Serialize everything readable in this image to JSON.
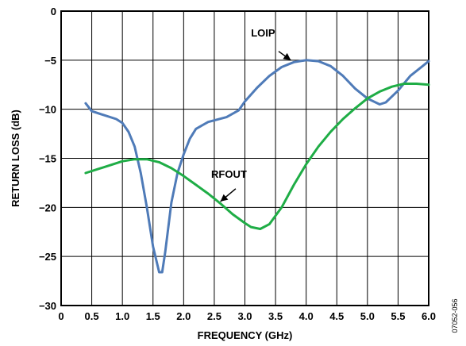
{
  "chart_data": {
    "type": "line",
    "xlabel": "FREQUENCY (GHz)",
    "ylabel": "RETURN LOSS (dB)",
    "xlim": [
      0,
      6.0
    ],
    "ylim": [
      -30,
      0
    ],
    "grid": true,
    "x_ticks": [
      "0",
      "0.5",
      "1.0",
      "1.5",
      "2.0",
      "2.5",
      "3.0",
      "3.5",
      "4.0",
      "4.5",
      "5.0",
      "5.5",
      "6.0"
    ],
    "y_ticks": [
      "0",
      "−5",
      "−10",
      "−15",
      "−20",
      "−25",
      "−30"
    ],
    "figure_id": "07052-056",
    "series": [
      {
        "name": "LOIP",
        "color": "#4f7bb8",
        "points": [
          [
            0.4,
            -9.4
          ],
          [
            0.5,
            -10.2
          ],
          [
            0.7,
            -10.6
          ],
          [
            0.9,
            -11.0
          ],
          [
            1.0,
            -11.4
          ],
          [
            1.1,
            -12.3
          ],
          [
            1.2,
            -13.8
          ],
          [
            1.3,
            -16.5
          ],
          [
            1.4,
            -20.0
          ],
          [
            1.5,
            -24.0
          ],
          [
            1.6,
            -26.6
          ],
          [
            1.65,
            -26.6
          ],
          [
            1.7,
            -24.5
          ],
          [
            1.8,
            -19.5
          ],
          [
            1.9,
            -16.5
          ],
          [
            2.0,
            -14.6
          ],
          [
            2.1,
            -13.0
          ],
          [
            2.2,
            -12.0
          ],
          [
            2.4,
            -11.3
          ],
          [
            2.7,
            -10.8
          ],
          [
            2.9,
            -10.1
          ],
          [
            3.0,
            -9.2
          ],
          [
            3.2,
            -7.8
          ],
          [
            3.4,
            -6.6
          ],
          [
            3.6,
            -5.7
          ],
          [
            3.8,
            -5.2
          ],
          [
            4.0,
            -5.0
          ],
          [
            4.2,
            -5.1
          ],
          [
            4.4,
            -5.6
          ],
          [
            4.6,
            -6.6
          ],
          [
            4.8,
            -7.9
          ],
          [
            5.0,
            -8.9
          ],
          [
            5.2,
            -9.5
          ],
          [
            5.3,
            -9.3
          ],
          [
            5.5,
            -8.1
          ],
          [
            5.7,
            -6.6
          ],
          [
            5.9,
            -5.6
          ],
          [
            6.0,
            -5.1
          ]
        ]
      },
      {
        "name": "RFOUT",
        "color": "#1fad46",
        "points": [
          [
            0.4,
            -16.5
          ],
          [
            0.6,
            -16.1
          ],
          [
            0.8,
            -15.7
          ],
          [
            1.0,
            -15.3
          ],
          [
            1.2,
            -15.1
          ],
          [
            1.4,
            -15.1
          ],
          [
            1.6,
            -15.4
          ],
          [
            1.8,
            -16.0
          ],
          [
            2.0,
            -16.8
          ],
          [
            2.2,
            -17.7
          ],
          [
            2.4,
            -18.6
          ],
          [
            2.6,
            -19.6
          ],
          [
            2.8,
            -20.7
          ],
          [
            3.0,
            -21.6
          ],
          [
            3.1,
            -22.0
          ],
          [
            3.25,
            -22.2
          ],
          [
            3.4,
            -21.7
          ],
          [
            3.6,
            -20.0
          ],
          [
            3.8,
            -17.7
          ],
          [
            4.0,
            -15.6
          ],
          [
            4.2,
            -13.8
          ],
          [
            4.4,
            -12.3
          ],
          [
            4.6,
            -11.0
          ],
          [
            4.8,
            -9.9
          ],
          [
            5.0,
            -8.9
          ],
          [
            5.2,
            -8.2
          ],
          [
            5.4,
            -7.7
          ],
          [
            5.6,
            -7.4
          ],
          [
            5.8,
            -7.4
          ],
          [
            6.0,
            -7.5
          ]
        ]
      }
    ],
    "annotations": [
      {
        "text": "LOIP",
        "series": 0,
        "label_at": [
          3.1,
          -2.6
        ],
        "arrow_from": [
          3.55,
          -4.1
        ],
        "arrow_to": [
          3.75,
          -5.0
        ]
      },
      {
        "text": "RFOUT",
        "series": 1,
        "label_at": [
          2.45,
          -17.0
        ],
        "arrow_from": [
          2.85,
          -18.1
        ],
        "arrow_to": [
          2.6,
          -19.4
        ]
      }
    ]
  }
}
